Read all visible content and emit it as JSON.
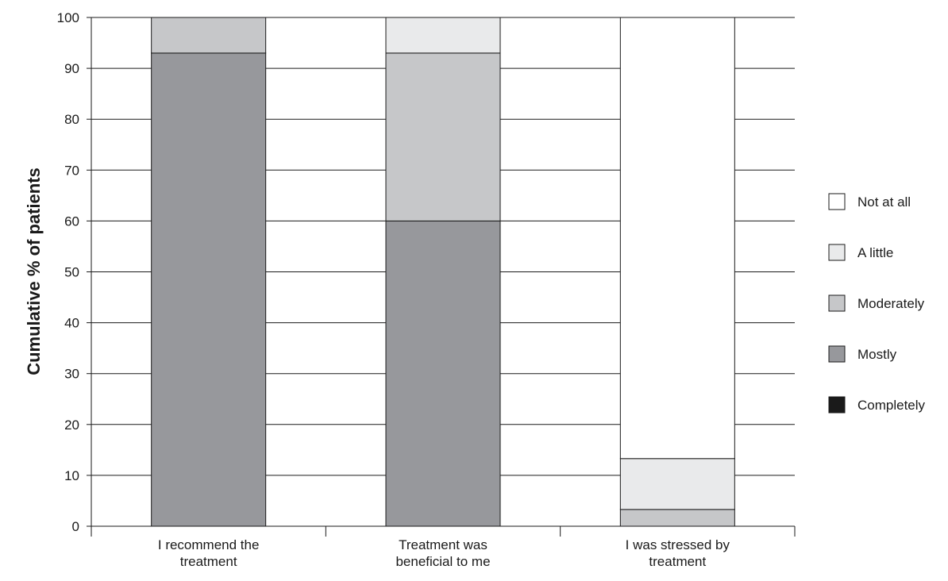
{
  "chart_data": {
    "type": "bar",
    "stacked": true,
    "cumulative": true,
    "title": "",
    "xlabel": "",
    "ylabel": "Cumulative % of patients",
    "ylim": [
      0,
      100
    ],
    "yticks": [
      0,
      10,
      20,
      30,
      40,
      50,
      60,
      70,
      80,
      90,
      100
    ],
    "grid": "horizontal",
    "legend_position": "right",
    "categories": [
      [
        "I recommend the",
        "treatment"
      ],
      [
        "Treatment was",
        "beneficial to me"
      ],
      [
        "I was stressed by",
        "treatment"
      ]
    ],
    "series": [
      {
        "name": "Completely",
        "color": "#1a1a1a",
        "values": [
          0,
          0,
          0
        ]
      },
      {
        "name": "Mostly",
        "color": "#97989c",
        "values": [
          93,
          60,
          0
        ]
      },
      {
        "name": "Moderately",
        "color": "#c6c7c9",
        "values": [
          7,
          33,
          3.3
        ]
      },
      {
        "name": "A little",
        "color": "#e9eaeb",
        "values": [
          0,
          7,
          10
        ]
      },
      {
        "name": "Not at all",
        "color": "#ffffff",
        "values": [
          0,
          0,
          86.7
        ]
      }
    ],
    "legend_order": [
      "Not at all",
      "A little",
      "Moderately",
      "Mostly",
      "Completely"
    ]
  }
}
